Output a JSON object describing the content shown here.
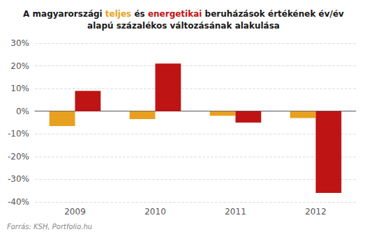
{
  "chart_data": {
    "type": "bar",
    "title": "A magyarországi teljes és energetikai beruházások értékének év/év\nalapú százalékos változásának alakulása",
    "categories": [
      "2009",
      "2010",
      "2011",
      "2012"
    ],
    "series": [
      {
        "name": "teljes",
        "color": "#E8A020",
        "values": [
          -6.5,
          -3.5,
          -2.0,
          -3.0
        ]
      },
      {
        "name": "energetikai",
        "color": "#BE1414",
        "values": [
          9.0,
          21.0,
          -5.0,
          -36.0
        ]
      }
    ],
    "ylim": [
      -40,
      30
    ],
    "yticks": [
      {
        "value": -40,
        "label": "-40%"
      },
      {
        "value": -30,
        "label": "-30%"
      },
      {
        "value": -20,
        "label": "-20%"
      },
      {
        "value": -10,
        "label": "-10%"
      },
      {
        "value": 0,
        "label": "0%"
      },
      {
        "value": 10,
        "label": "10%"
      },
      {
        "value": 20,
        "label": "20%"
      },
      {
        "value": 30,
        "label": "30%"
      }
    ],
    "grid": true,
    "annotations": [
      "Forrás: KSH, Portfolio.hu"
    ]
  }
}
